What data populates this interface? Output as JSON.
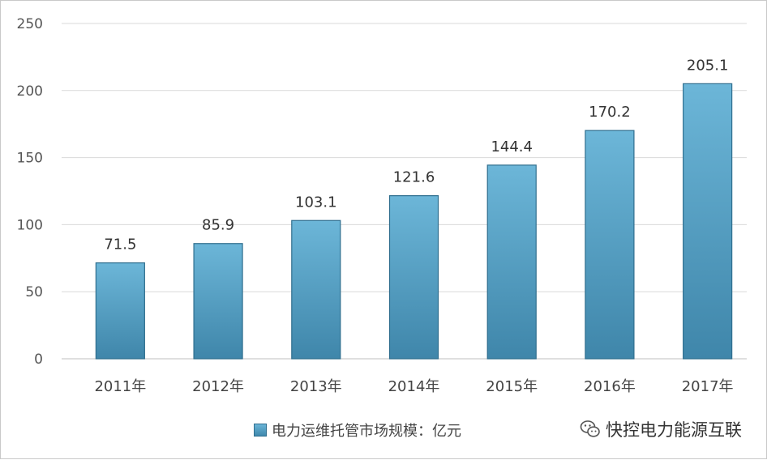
{
  "chart_data": {
    "type": "bar",
    "categories": [
      "2011年",
      "2012年",
      "2013年",
      "2014年",
      "2015年",
      "2016年",
      "2017年"
    ],
    "series": [
      {
        "name": "电力运维托管市场规模：亿元",
        "values": [
          71.5,
          85.9,
          103.1,
          121.6,
          144.4,
          170.2,
          205.1
        ]
      }
    ],
    "data_labels": [
      "71.5",
      "85.9",
      "103.1",
      "121.6",
      "144.4",
      "170.2",
      "205.1"
    ],
    "ylim": [
      0,
      250
    ],
    "yticks": [
      0,
      50,
      100,
      150,
      200,
      250
    ],
    "grid": true,
    "legend_position": "bottom",
    "bar_color": "#4f9bc2"
  },
  "legend": {
    "label": "电力运维托管市场规模：亿元"
  },
  "watermark": {
    "icon": "wechat-icon",
    "text": "快控电力能源互联"
  }
}
